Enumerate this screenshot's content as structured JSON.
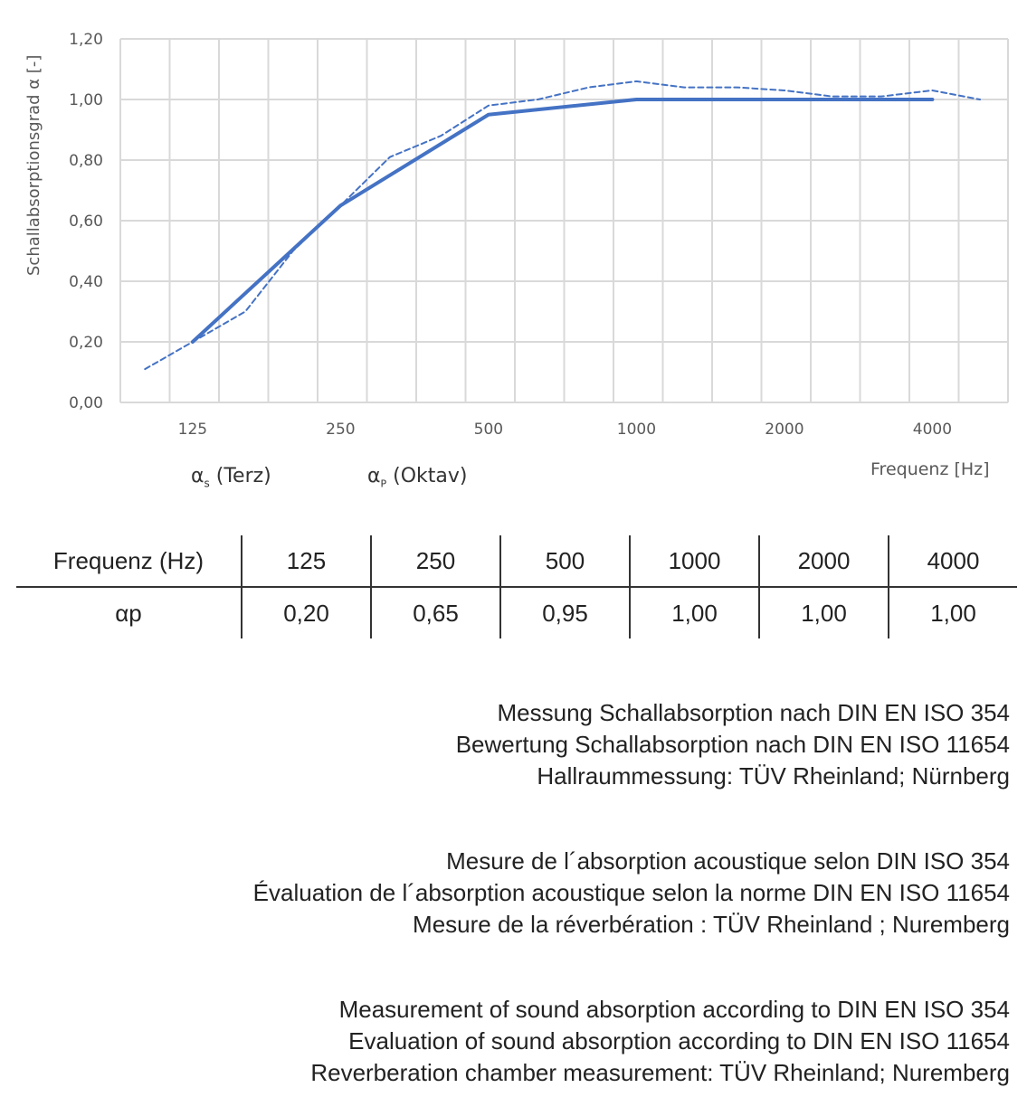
{
  "chart_data": {
    "type": "line",
    "ylabel": "Schallabsorptionsgrad α [-]",
    "xlabel": "Frequenz [Hz]",
    "ylim": [
      0,
      1.2
    ],
    "yticks": [
      "0,00",
      "0,20",
      "0,40",
      "0,60",
      "0,80",
      "1,00",
      "1,20"
    ],
    "xtick_labels": [
      "125",
      "250",
      "500",
      "1000",
      "2000",
      "4000"
    ],
    "grid": true,
    "legend_position": "bottom-left",
    "series": [
      {
        "name": "αs (Terz)",
        "style": "dashed",
        "x": [
          100,
          125,
          160,
          200,
          250,
          315,
          400,
          500,
          630,
          800,
          1000,
          1250,
          1600,
          2000,
          2500,
          3150,
          4000,
          5000
        ],
        "values": [
          0.11,
          0.2,
          0.3,
          0.5,
          0.65,
          0.81,
          0.88,
          0.98,
          1.0,
          1.04,
          1.06,
          1.04,
          1.04,
          1.03,
          1.01,
          1.01,
          1.03,
          1.0
        ]
      },
      {
        "name": "αP (Oktav)",
        "style": "solid",
        "x": [
          125,
          250,
          500,
          1000,
          2000,
          4000
        ],
        "values": [
          0.2,
          0.65,
          0.95,
          1.0,
          1.0,
          1.0
        ]
      }
    ],
    "color": "#4472C4"
  },
  "legend": {
    "s_alpha": "α",
    "s_sub": "s",
    "s_rest": " (Terz)",
    "p_alpha": "α",
    "p_sub": "P",
    "p_rest": " (Oktav)"
  },
  "table": {
    "header_label": "Frequenz (Hz)",
    "frequencies": [
      "125",
      "250",
      "500",
      "1000",
      "2000",
      "4000"
    ],
    "row_label": "αp",
    "values": [
      "0,20",
      "0,65",
      "0,95",
      "1,00",
      "1,00",
      "1,00"
    ]
  },
  "notes": {
    "de": [
      "Messung Schallabsorption nach DIN EN ISO 354",
      "Bewertung Schallabsorption nach DIN EN ISO 11654",
      "Hallraummessung: TÜV Rheinland; Nürnberg"
    ],
    "fr": [
      "Mesure de l´absorption acoustique selon DIN ISO 354",
      "Évaluation de l´absorption acoustique selon la norme DIN EN ISO 11654",
      "Mesure de la réverbération : TÜV Rheinland ; Nuremberg"
    ],
    "en": [
      "Measurement of sound absorption according to DIN EN ISO 354",
      "Evaluation of sound absorption according to DIN EN ISO 11654",
      "Reverberation chamber measurement: TÜV Rheinland; Nuremberg"
    ]
  }
}
